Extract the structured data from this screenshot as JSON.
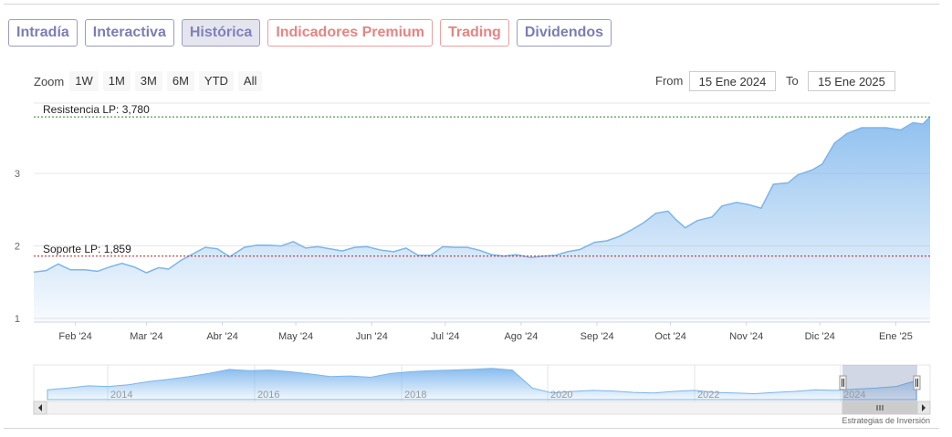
{
  "tabs": [
    {
      "label": "Intradía",
      "style": "normal"
    },
    {
      "label": "Interactiva",
      "style": "normal"
    },
    {
      "label": "Histórica",
      "style": "active"
    },
    {
      "label": "Indicadores Premium",
      "style": "red"
    },
    {
      "label": "Trading",
      "style": "red"
    },
    {
      "label": "Dividendos",
      "style": "normal"
    }
  ],
  "zoom": {
    "label": "Zoom",
    "buttons": [
      "1W",
      "1M",
      "3M",
      "6M",
      "YTD",
      "All"
    ]
  },
  "range": {
    "from_label": "From",
    "from_value": "15 Ene 2024",
    "to_label": "To",
    "to_value": "15 Ene 2025"
  },
  "credits": "Estrategias de Inversión",
  "colors": {
    "line": "#7cb5ec",
    "resistance": "#2e7d32",
    "support": "#b71c1c",
    "tab_border": "#9a9cc2",
    "tab_red": "#e48585"
  },
  "chart_data": {
    "type": "area",
    "ylim": [
      0.95,
      3.97
    ],
    "y_ticks": [
      "1",
      "2",
      "3"
    ],
    "x_ticks": [
      "Feb '24",
      "Mar '24",
      "Abr '24",
      "May '24",
      "Jun '24",
      "Jul '24",
      "Ago '24",
      "Sep '24",
      "Oct '24",
      "Nov '24",
      "Dic '24",
      "Ene '25"
    ],
    "x_range": [
      "2024-01-15",
      "2025-01-15"
    ],
    "series": [
      {
        "x": [
          "2024-01-15",
          "2024-01-20",
          "2024-01-25",
          "2024-01-30",
          "2024-02-05",
          "2024-02-10",
          "2024-02-15",
          "2024-02-20",
          "2024-02-25",
          "2024-03-01",
          "2024-03-06",
          "2024-03-10",
          "2024-03-15",
          "2024-03-20",
          "2024-03-25",
          "2024-03-30",
          "2024-04-04",
          "2024-04-10",
          "2024-04-15",
          "2024-04-20",
          "2024-04-25",
          "2024-04-30",
          "2024-05-05",
          "2024-05-10",
          "2024-05-15",
          "2024-05-20",
          "2024-05-25",
          "2024-05-30",
          "2024-06-05",
          "2024-06-10",
          "2024-06-15",
          "2024-06-20",
          "2024-06-25",
          "2024-06-30",
          "2024-07-05",
          "2024-07-10",
          "2024-07-15",
          "2024-07-20",
          "2024-07-25",
          "2024-07-30",
          "2024-08-05",
          "2024-08-10",
          "2024-08-15",
          "2024-08-20",
          "2024-08-25",
          "2024-08-31",
          "2024-09-05",
          "2024-09-10",
          "2024-09-15",
          "2024-09-20",
          "2024-09-25",
          "2024-09-30",
          "2024-10-03",
          "2024-10-07",
          "2024-10-12",
          "2024-10-18",
          "2024-10-22",
          "2024-10-28",
          "2024-11-02",
          "2024-11-07",
          "2024-11-12",
          "2024-11-18",
          "2024-11-22",
          "2024-11-28",
          "2024-12-02",
          "2024-12-07",
          "2024-12-12",
          "2024-12-18",
          "2024-12-22",
          "2024-12-28",
          "2025-01-03",
          "2025-01-08",
          "2025-01-12",
          "2025-01-15"
        ],
        "values": [
          1.64,
          1.66,
          1.75,
          1.67,
          1.67,
          1.65,
          1.71,
          1.76,
          1.71,
          1.63,
          1.7,
          1.68,
          1.8,
          1.89,
          1.98,
          1.96,
          1.85,
          1.98,
          2.01,
          2.01,
          2.0,
          2.06,
          1.97,
          1.99,
          1.96,
          1.93,
          1.98,
          1.99,
          1.94,
          1.92,
          1.97,
          1.87,
          1.87,
          1.99,
          1.98,
          1.98,
          1.94,
          1.88,
          1.86,
          1.88,
          1.84,
          1.86,
          1.87,
          1.92,
          1.95,
          2.05,
          2.07,
          2.13,
          2.22,
          2.32,
          2.45,
          2.48,
          2.37,
          2.25,
          2.35,
          2.4,
          2.55,
          2.6,
          2.57,
          2.52,
          2.85,
          2.87,
          2.98,
          3.05,
          3.13,
          3.42,
          3.55,
          3.63,
          3.63,
          3.63,
          3.6,
          3.7,
          3.68,
          3.78
        ]
      }
    ],
    "annotations": [
      {
        "label": "Resistencia LP: 3,780",
        "value": 3.78
      },
      {
        "label": "Soporte LP: 1,859",
        "value": 1.859
      }
    ],
    "navigator": {
      "x_ticks": [
        "2014",
        "2016",
        "2018",
        "2020",
        "2022",
        "2024"
      ],
      "values": [
        0.3,
        0.35,
        0.42,
        0.4,
        0.45,
        0.55,
        0.62,
        0.7,
        0.8,
        0.92,
        0.88,
        0.9,
        0.85,
        0.78,
        0.7,
        0.72,
        0.68,
        0.8,
        0.85,
        0.88,
        0.9,
        0.92,
        0.95,
        0.9,
        0.35,
        0.2,
        0.25,
        0.28,
        0.26,
        0.22,
        0.2,
        0.25,
        0.28,
        0.22,
        0.2,
        0.18,
        0.22,
        0.25,
        0.3,
        0.28,
        0.32,
        0.35,
        0.4,
        0.58
      ]
    }
  }
}
